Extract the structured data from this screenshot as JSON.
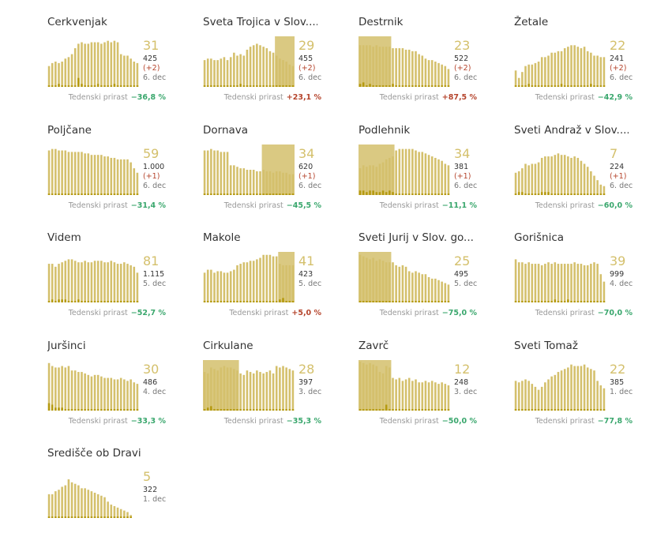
{
  "colors": {
    "bar": "#d4c06c",
    "bar_dark": "#b59a10",
    "highlight": "#f0e6b0",
    "number": "#d4c06c",
    "negative": "#3aa76d",
    "positive": "#b5442c"
  },
  "growth_label": "Tedenski prirast",
  "chart_data": [
    {
      "type": "bar",
      "title": "Cerkvenjak",
      "current": "31",
      "total": "425",
      "delta": "(+2)",
      "date": "6. dec",
      "growth": "−36,8 %",
      "values": [
        14,
        16,
        17,
        16,
        17,
        19,
        20,
        22,
        26,
        29,
        30,
        29,
        29,
        30,
        30,
        30,
        29,
        30,
        31,
        30,
        31,
        30,
        22,
        21,
        21,
        19,
        17,
        16
      ],
      "daily": [
        1,
        1,
        1,
        2,
        1,
        1,
        1,
        1,
        1,
        6,
        2,
        1,
        1,
        1,
        1,
        2,
        1,
        1,
        1,
        1,
        2,
        1,
        1,
        1,
        1,
        1,
        1,
        1
      ]
    },
    {
      "type": "bar",
      "title": "Sveta Trojica v Slov....",
      "current": "29",
      "total": "455",
      "delta": "(+2)",
      "date": "6. dec",
      "growth": "+23,1 %",
      "values": [
        18,
        19,
        19,
        18,
        18,
        19,
        20,
        18,
        20,
        23,
        21,
        22,
        21,
        25,
        27,
        28,
        29,
        28,
        27,
        26,
        24,
        23,
        21,
        19,
        18,
        17,
        15,
        14
      ],
      "daily": [
        1,
        1,
        1,
        1,
        1,
        1,
        1,
        1,
        1,
        1,
        1,
        2,
        1,
        1,
        1,
        1,
        1,
        1,
        1,
        1,
        1,
        1,
        1,
        1,
        1,
        1,
        1,
        1
      ],
      "highlight": [
        22,
        27
      ]
    },
    {
      "type": "bar",
      "title": "Destrnik",
      "current": "23",
      "total": "522",
      "delta": "(+2)",
      "date": "6. dec",
      "growth": "+87,5 %",
      "values": [
        28,
        28,
        28,
        28,
        27,
        28,
        27,
        27,
        27,
        27,
        26,
        26,
        26,
        26,
        25,
        25,
        24,
        24,
        22,
        21,
        19,
        18,
        18,
        17,
        16,
        15,
        14,
        12
      ],
      "daily": [
        2,
        3,
        1,
        2,
        1,
        1,
        1,
        1,
        1,
        1,
        2,
        1,
        1,
        1,
        1,
        1,
        1,
        1,
        1,
        1,
        1,
        1,
        1,
        1,
        1,
        1,
        1,
        1
      ],
      "highlight": [
        0,
        9
      ]
    },
    {
      "type": "bar",
      "title": "Žetale",
      "current": "22",
      "total": "241",
      "delta": "(+2)",
      "date": "6. dec",
      "growth": "−42,9 %",
      "values": [
        11,
        6,
        10,
        14,
        15,
        15,
        16,
        17,
        20,
        20,
        21,
        23,
        23,
        24,
        24,
        26,
        27,
        28,
        28,
        27,
        26,
        27,
        24,
        23,
        21,
        21,
        20,
        20
      ],
      "daily": [
        1,
        1,
        1,
        1,
        2,
        1,
        1,
        1,
        1,
        1,
        1,
        1,
        1,
        1,
        2,
        1,
        1,
        1,
        1,
        1,
        1,
        1,
        1,
        2,
        1,
        1,
        1,
        1
      ]
    },
    {
      "type": "bar",
      "title": "Poljčane",
      "current": "59",
      "total": "1.000",
      "delta": "(+1)",
      "date": "6. dec",
      "growth": "−31,4 %",
      "values": [
        30,
        31,
        31,
        30,
        30,
        30,
        29,
        29,
        29,
        29,
        29,
        28,
        28,
        27,
        27,
        27,
        27,
        26,
        26,
        25,
        25,
        24,
        24,
        24,
        24,
        22,
        18,
        15
      ],
      "daily": [
        1,
        1,
        1,
        1,
        1,
        1,
        1,
        1,
        1,
        1,
        1,
        1,
        1,
        1,
        1,
        1,
        1,
        1,
        1,
        1,
        1,
        1,
        1,
        1,
        1,
        1,
        1,
        1
      ]
    },
    {
      "type": "bar",
      "title": "Dornava",
      "current": "34",
      "total": "620",
      "delta": "(+1)",
      "date": "6. dec",
      "growth": "−45,5 %",
      "values": [
        30,
        30,
        31,
        30,
        30,
        29,
        29,
        29,
        20,
        20,
        19,
        18,
        18,
        17,
        17,
        17,
        16,
        16,
        17,
        16,
        16,
        15,
        16,
        16,
        15,
        15,
        14,
        14
      ],
      "daily": [
        1,
        1,
        1,
        1,
        1,
        1,
        1,
        1,
        1,
        1,
        1,
        1,
        1,
        1,
        1,
        1,
        1,
        1,
        1,
        1,
        1,
        1,
        1,
        1,
        1,
        1,
        1,
        1
      ],
      "highlight": [
        18,
        27
      ]
    },
    {
      "type": "bar",
      "title": "Podlehnik",
      "current": "34",
      "total": "381",
      "delta": "(+1)",
      "date": "6. dec",
      "growth": "−11,1 %",
      "values": [
        18,
        20,
        19,
        20,
        20,
        19,
        21,
        22,
        24,
        25,
        26,
        30,
        31,
        31,
        31,
        31,
        31,
        30,
        29,
        29,
        28,
        27,
        26,
        25,
        24,
        23,
        21,
        20
      ],
      "daily": [
        3,
        3,
        2,
        3,
        3,
        2,
        2,
        3,
        2,
        3,
        2,
        1,
        1,
        1,
        1,
        1,
        1,
        1,
        1,
        1,
        1,
        1,
        1,
        1,
        1,
        1,
        1,
        1
      ],
      "highlight": [
        0,
        10
      ]
    },
    {
      "type": "bar",
      "title": "Sveti Andraž v Slov....",
      "current": "7",
      "total": "224",
      "delta": "(+1)",
      "date": "6. dec",
      "growth": "−60,0 %",
      "values": [
        15,
        16,
        18,
        21,
        20,
        21,
        21,
        22,
        25,
        26,
        26,
        26,
        27,
        28,
        27,
        27,
        26,
        25,
        26,
        25,
        23,
        21,
        19,
        16,
        13,
        10,
        7,
        6
      ],
      "daily": [
        1,
        2,
        2,
        1,
        1,
        1,
        1,
        1,
        2,
        2,
        2,
        1,
        1,
        1,
        1,
        1,
        1,
        1,
        1,
        1,
        1,
        1,
        1,
        1,
        1,
        1,
        1,
        1
      ]
    },
    {
      "type": "bar",
      "title": "Videm",
      "current": "81",
      "total": "1.115",
      "delta": "",
      "date": "5. dec",
      "growth": "−52,7 %",
      "values": [
        26,
        26,
        24,
        26,
        27,
        28,
        29,
        29,
        28,
        27,
        27,
        28,
        27,
        27,
        28,
        28,
        28,
        27,
        27,
        28,
        27,
        26,
        26,
        27,
        26,
        25,
        24,
        20
      ],
      "daily": [
        1,
        2,
        1,
        2,
        2,
        2,
        1,
        1,
        1,
        2,
        1,
        1,
        1,
        1,
        1,
        1,
        1,
        1,
        1,
        1,
        1,
        1,
        1,
        1,
        1,
        1,
        1,
        1
      ]
    },
    {
      "type": "bar",
      "title": "Makole",
      "current": "41",
      "total": "423",
      "delta": "",
      "date": "5. dec",
      "growth": "+5,0 %",
      "values": [
        20,
        22,
        22,
        20,
        21,
        21,
        20,
        20,
        21,
        22,
        25,
        26,
        27,
        27,
        28,
        28,
        29,
        30,
        32,
        32,
        32,
        31,
        31,
        26,
        25,
        25,
        25,
        25
      ],
      "daily": [
        1,
        1,
        1,
        1,
        1,
        1,
        1,
        1,
        1,
        1,
        1,
        1,
        1,
        1,
        1,
        1,
        1,
        1,
        1,
        1,
        1,
        1,
        1,
        2,
        3,
        1,
        1,
        1
      ],
      "highlight": [
        23,
        27
      ]
    },
    {
      "type": "bar",
      "title": "Sveti Jurij v Slov. go...",
      "current": "25",
      "total": "495",
      "delta": "",
      "date": "5. dec",
      "growth": "−75,0 %",
      "values": [
        32,
        31,
        30,
        29,
        30,
        28,
        29,
        28,
        27,
        27,
        27,
        25,
        24,
        25,
        24,
        21,
        20,
        21,
        20,
        19,
        19,
        17,
        16,
        16,
        15,
        14,
        13,
        12
      ],
      "daily": [
        1,
        1,
        1,
        1,
        1,
        1,
        1,
        1,
        1,
        1,
        1,
        1,
        1,
        1,
        1,
        1,
        1,
        1,
        1,
        1,
        1,
        1,
        1,
        1,
        1,
        1,
        1,
        1
      ],
      "highlight": [
        0,
        9
      ]
    },
    {
      "type": "bar",
      "title": "Gorišnica",
      "current": "39",
      "total": "999",
      "delta": "",
      "date": "4. dec",
      "growth": "−70,0 %",
      "values": [
        29,
        27,
        27,
        26,
        27,
        26,
        26,
        26,
        25,
        26,
        27,
        26,
        27,
        26,
        26,
        26,
        26,
        26,
        27,
        26,
        26,
        25,
        25,
        26,
        27,
        26,
        19,
        14
      ],
      "daily": [
        1,
        1,
        1,
        1,
        1,
        1,
        1,
        1,
        1,
        1,
        1,
        1,
        2,
        1,
        1,
        1,
        2,
        1,
        1,
        1,
        1,
        1,
        1,
        1,
        1,
        1,
        1,
        1
      ]
    },
    {
      "type": "bar",
      "title": "Juršinci",
      "current": "30",
      "total": "486",
      "delta": "",
      "date": "4. dec",
      "growth": "−33,3 %",
      "values": [
        32,
        30,
        29,
        29,
        30,
        29,
        30,
        27,
        27,
        26,
        26,
        25,
        24,
        23,
        24,
        24,
        23,
        22,
        22,
        22,
        21,
        21,
        22,
        21,
        20,
        21,
        19,
        18
      ],
      "daily": [
        5,
        4,
        2,
        2,
        2,
        1,
        1,
        1,
        1,
        1,
        1,
        1,
        1,
        1,
        1,
        1,
        1,
        1,
        1,
        1,
        1,
        1,
        1,
        1,
        1,
        1,
        1,
        1
      ]
    },
    {
      "type": "bar",
      "title": "Cirkulane",
      "current": "28",
      "total": "397",
      "delta": "",
      "date": "3. dec",
      "growth": "−35,3 %",
      "values": [
        26,
        25,
        29,
        28,
        27,
        29,
        30,
        29,
        29,
        28,
        27,
        25,
        24,
        27,
        26,
        25,
        27,
        26,
        25,
        26,
        27,
        25,
        30,
        29,
        30,
        29,
        28,
        27
      ],
      "daily": [
        1,
        2,
        3,
        1,
        1,
        1,
        1,
        1,
        1,
        1,
        1,
        1,
        1,
        1,
        1,
        1,
        1,
        1,
        1,
        1,
        1,
        1,
        1,
        1,
        1,
        1,
        1,
        1
      ],
      "highlight": [
        0,
        10
      ]
    },
    {
      "type": "bar",
      "title": "Zavrč",
      "current": "12",
      "total": "248",
      "delta": "",
      "date": "3. dec",
      "growth": "−50,0 %",
      "values": [
        33,
        32,
        31,
        32,
        31,
        30,
        26,
        25,
        30,
        29,
        22,
        21,
        22,
        20,
        21,
        22,
        20,
        21,
        19,
        19,
        20,
        19,
        20,
        19,
        18,
        19,
        18,
        17
      ],
      "daily": [
        1,
        1,
        1,
        1,
        1,
        1,
        1,
        1,
        4,
        1,
        1,
        1,
        1,
        1,
        1,
        1,
        1,
        1,
        1,
        1,
        1,
        1,
        1,
        1,
        1,
        1,
        1,
        1
      ],
      "highlight": [
        0,
        9
      ]
    },
    {
      "type": "bar",
      "title": "Sveti Tomaž",
      "current": "22",
      "total": "385",
      "delta": "",
      "date": "1. dec",
      "growth": "−77,8 %",
      "values": [
        20,
        19,
        20,
        21,
        20,
        18,
        16,
        14,
        16,
        19,
        21,
        23,
        24,
        26,
        27,
        28,
        29,
        31,
        30,
        30,
        30,
        31,
        29,
        28,
        27,
        20,
        17,
        15
      ],
      "daily": [
        1,
        1,
        1,
        1,
        1,
        1,
        1,
        1,
        1,
        1,
        1,
        1,
        1,
        1,
        1,
        1,
        1,
        1,
        1,
        1,
        1,
        1,
        1,
        1,
        1,
        1,
        1,
        1
      ]
    },
    {
      "type": "bar",
      "title": "Središče ob Dravi",
      "current": "5",
      "total": "322",
      "delta": "",
      "date": "1. dec",
      "growth": "",
      "values": [
        16,
        16,
        18,
        19,
        21,
        22,
        26,
        24,
        23,
        22,
        20,
        20,
        19,
        18,
        17,
        16,
        15,
        14,
        11,
        9,
        8,
        7,
        6,
        5,
        4,
        2
      ],
      "daily": [
        1,
        1,
        1,
        1,
        1,
        1,
        1,
        1,
        1,
        1,
        1,
        1,
        1,
        1,
        1,
        1,
        1,
        1,
        1,
        1,
        1,
        1,
        1,
        1,
        1,
        1
      ]
    }
  ]
}
